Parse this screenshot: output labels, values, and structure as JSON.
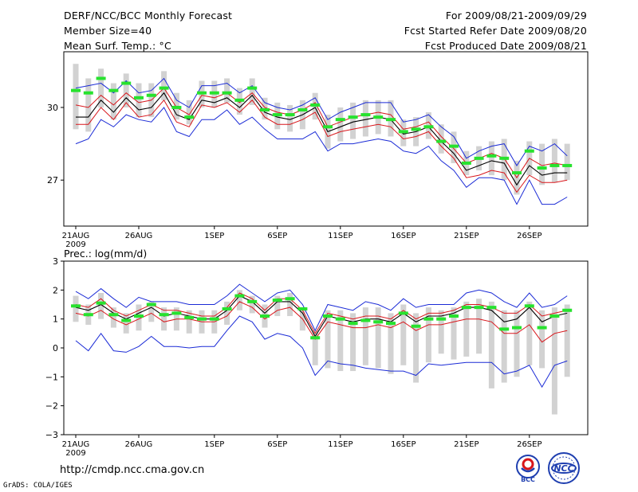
{
  "header": {
    "title": "DERF/NCC/BCC Monthly Forecast",
    "member_size": "Member Size=40",
    "variable": "Mean Surf. Temp.: °C",
    "forecast_period": "For 2009/08/21-2009/09/29",
    "start_date": "Fcst Started Refer Date 2009/08/20",
    "produced_date": "Fcst Produced Date 2009/08/21"
  },
  "footer": {
    "url": "http://cmdp.ncc.cma.gov.cn",
    "grads": "GrADS: COLA/IGES",
    "logo_bcc": "BCC",
    "logo_ncc": "NCC"
  },
  "colors": {
    "ensemble_min_max": "#1b2bd6",
    "ensemble_spread": "#d8161b",
    "ensemble_mean": "#000000",
    "box": "#d2d2d2",
    "observed": "#27e22e"
  },
  "chart_data": [
    {
      "type": "line",
      "title": "Mean Surf. Temp.: °C",
      "x": [
        1,
        2,
        3,
        4,
        5,
        6,
        7,
        8,
        9,
        10,
        11,
        12,
        13,
        14,
        15,
        16,
        17,
        18,
        19,
        20,
        21,
        22,
        23,
        24,
        25,
        26,
        27,
        28,
        29,
        30,
        31,
        32,
        33,
        34,
        35,
        36,
        37,
        38,
        39,
        40
      ],
      "x_ticks": [
        {
          "day": 1,
          "label": "21AUG"
        },
        {
          "day": 6,
          "label": "26AUG"
        },
        {
          "day": 12,
          "label": "1SEP"
        },
        {
          "day": 17,
          "label": "6SEP"
        },
        {
          "day": 22,
          "label": "11SEP"
        },
        {
          "day": 27,
          "label": "16SEP"
        },
        {
          "day": 32,
          "label": "21SEP"
        },
        {
          "day": 37,
          "label": "26SEP"
        }
      ],
      "year_label": "2009",
      "y_ticks": [
        27,
        30
      ],
      "ylim": [
        25.1,
        32.3
      ],
      "series": [
        {
          "name": "max",
          "values": [
            30.8,
            30.9,
            31.0,
            30.6,
            31.1,
            30.6,
            30.7,
            31.2,
            30.3,
            30.0,
            30.9,
            30.9,
            31.0,
            30.6,
            30.9,
            30.2,
            30.0,
            29.9,
            30.1,
            30.4,
            29.5,
            29.8,
            30.0,
            30.2,
            30.2,
            30.2,
            29.4,
            29.5,
            29.7,
            29.2,
            28.8,
            27.9,
            28.2,
            28.4,
            28.5,
            27.6,
            28.4,
            28.2,
            28.5,
            28.0
          ]
        },
        {
          "name": "spread_upper",
          "values": [
            30.1,
            30.0,
            30.5,
            30.1,
            30.6,
            30.2,
            30.3,
            30.8,
            30.0,
            29.7,
            30.5,
            30.4,
            30.6,
            30.2,
            30.6,
            30.0,
            29.8,
            29.7,
            29.9,
            30.2,
            29.2,
            29.4,
            29.6,
            29.7,
            29.8,
            29.7,
            29.1,
            29.2,
            29.4,
            28.8,
            28.3,
            27.7,
            27.9,
            28.1,
            27.9,
            27.1,
            27.9,
            27.6,
            27.7,
            27.6
          ]
        },
        {
          "name": "mean",
          "values": [
            29.6,
            29.6,
            30.3,
            29.8,
            30.4,
            29.9,
            30.0,
            30.6,
            29.7,
            29.5,
            30.3,
            30.2,
            30.4,
            30.0,
            30.5,
            29.8,
            29.6,
            29.5,
            29.7,
            30.0,
            29.0,
            29.2,
            29.4,
            29.5,
            29.6,
            29.5,
            28.9,
            29.0,
            29.2,
            28.6,
            28.1,
            27.4,
            27.6,
            27.8,
            27.7,
            26.8,
            27.6,
            27.2,
            27.3,
            27.3
          ]
        },
        {
          "name": "spread_lower",
          "values": [
            29.3,
            29.3,
            30.0,
            29.5,
            30.2,
            29.6,
            29.7,
            30.3,
            29.4,
            29.2,
            30.1,
            30.0,
            30.2,
            29.8,
            30.3,
            29.6,
            29.3,
            29.3,
            29.5,
            29.8,
            28.8,
            29.0,
            29.1,
            29.2,
            29.3,
            29.2,
            28.7,
            28.8,
            29.0,
            28.4,
            27.9,
            27.1,
            27.2,
            27.4,
            27.3,
            26.5,
            27.2,
            26.9,
            26.9,
            27.0
          ]
        },
        {
          "name": "min",
          "values": [
            28.5,
            28.7,
            29.5,
            29.2,
            29.7,
            29.5,
            29.4,
            30.0,
            29.0,
            28.8,
            29.5,
            29.5,
            29.9,
            29.3,
            29.6,
            29.1,
            28.7,
            28.7,
            28.7,
            29.0,
            28.2,
            28.5,
            28.5,
            28.6,
            28.7,
            28.6,
            28.2,
            28.1,
            28.4,
            27.8,
            27.4,
            26.7,
            27.1,
            27.1,
            27.0,
            26.0,
            27.0,
            26.0,
            26.0,
            26.3
          ]
        },
        {
          "name": "observed",
          "values": [
            30.7,
            30.6,
            31.2,
            30.7,
            31.0,
            30.4,
            30.5,
            30.8,
            30.0,
            29.6,
            30.6,
            30.6,
            30.6,
            30.3,
            30.8,
            29.9,
            29.7,
            29.7,
            29.9,
            30.1,
            29.2,
            29.5,
            29.6,
            29.7,
            29.6,
            29.5,
            29.0,
            29.1,
            29.2,
            28.6,
            28.4,
            27.7,
            27.9,
            28.0,
            27.9,
            27.3,
            28.2,
            27.5,
            27.6,
            27.6
          ]
        },
        {
          "name": "box_top",
          "values": [
            31.8,
            31.2,
            31.6,
            31.0,
            31.4,
            31.0,
            31.0,
            31.5,
            30.6,
            30.3,
            31.1,
            31.1,
            31.2,
            30.8,
            31.2,
            30.4,
            30.2,
            30.1,
            30.3,
            30.6,
            29.7,
            30.0,
            30.2,
            30.3,
            30.3,
            30.3,
            29.5,
            29.6,
            29.8,
            29.3,
            29.0,
            28.2,
            28.4,
            28.6,
            28.7,
            27.8,
            28.6,
            28.5,
            28.7,
            28.5
          ]
        },
        {
          "name": "box_bottom",
          "values": [
            29.1,
            29.0,
            30.0,
            29.5,
            30.0,
            29.6,
            29.6,
            30.3,
            29.5,
            29.3,
            30.0,
            30.0,
            30.2,
            29.7,
            30.1,
            29.5,
            29.1,
            29.0,
            29.1,
            29.5,
            28.3,
            28.6,
            28.7,
            28.8,
            28.9,
            28.8,
            28.4,
            28.4,
            28.7,
            28.1,
            27.7,
            27.2,
            27.4,
            27.2,
            27.0,
            26.4,
            27.2,
            26.8,
            26.9,
            27.0
          ]
        }
      ]
    },
    {
      "type": "line",
      "title": "Prec.: log(mm/d)",
      "x": [
        1,
        2,
        3,
        4,
        5,
        6,
        7,
        8,
        9,
        10,
        11,
        12,
        13,
        14,
        15,
        16,
        17,
        18,
        19,
        20,
        21,
        22,
        23,
        24,
        25,
        26,
        27,
        28,
        29,
        30,
        31,
        32,
        33,
        34,
        35,
        36,
        37,
        38,
        39,
        40
      ],
      "x_ticks": [
        {
          "day": 1,
          "label": "21AUG"
        },
        {
          "day": 6,
          "label": "26AUG"
        },
        {
          "day": 12,
          "label": "1SEP"
        },
        {
          "day": 17,
          "label": "6SEP"
        },
        {
          "day": 22,
          "label": "11SEP"
        },
        {
          "day": 27,
          "label": "16SEP"
        },
        {
          "day": 32,
          "label": "21SEP"
        },
        {
          "day": 37,
          "label": "26SEP"
        }
      ],
      "year_label": "2009",
      "y_ticks": [
        -3,
        -2,
        -1,
        0,
        1,
        2,
        3
      ],
      "ylim": [
        -3,
        3
      ],
      "series": [
        {
          "name": "max",
          "values": [
            1.95,
            1.7,
            2.05,
            1.7,
            1.4,
            1.75,
            1.6,
            1.6,
            1.6,
            1.5,
            1.5,
            1.5,
            1.8,
            2.2,
            1.9,
            1.6,
            1.9,
            2.0,
            1.5,
            0.6,
            1.5,
            1.4,
            1.3,
            1.6,
            1.5,
            1.3,
            1.7,
            1.4,
            1.5,
            1.5,
            1.5,
            1.9,
            2.0,
            1.9,
            1.6,
            1.4,
            1.9,
            1.4,
            1.5,
            1.8
          ]
        },
        {
          "name": "spread_upper",
          "values": [
            1.5,
            1.4,
            1.7,
            1.3,
            1.1,
            1.3,
            1.5,
            1.3,
            1.3,
            1.2,
            1.1,
            1.1,
            1.4,
            1.9,
            1.7,
            1.3,
            1.7,
            1.7,
            1.3,
            0.5,
            1.2,
            1.1,
            1.0,
            1.1,
            1.1,
            1.0,
            1.3,
            1.0,
            1.2,
            1.2,
            1.3,
            1.5,
            1.5,
            1.4,
            1.2,
            1.2,
            1.5,
            1.1,
            1.2,
            1.3
          ]
        },
        {
          "name": "mean",
          "values": [
            1.4,
            1.3,
            1.5,
            1.2,
            1.0,
            1.2,
            1.4,
            1.1,
            1.2,
            1.1,
            1.0,
            1.0,
            1.3,
            1.8,
            1.6,
            1.2,
            1.6,
            1.6,
            1.2,
            0.4,
            1.1,
            1.0,
            0.9,
            1.0,
            1.0,
            0.9,
            1.2,
            0.9,
            1.1,
            1.1,
            1.2,
            1.4,
            1.4,
            1.3,
            0.9,
            1.0,
            1.4,
            0.9,
            1.1,
            1.2
          ]
        },
        {
          "name": "spread_lower",
          "values": [
            1.2,
            1.1,
            1.3,
            1.0,
            0.8,
            1.0,
            1.2,
            0.9,
            1.0,
            1.0,
            0.9,
            0.9,
            1.1,
            1.6,
            1.4,
            1.0,
            1.3,
            1.4,
            1.0,
            0.3,
            0.9,
            0.8,
            0.7,
            0.7,
            0.8,
            0.7,
            0.9,
            0.6,
            0.8,
            0.8,
            0.9,
            1.0,
            1.0,
            0.9,
            0.5,
            0.5,
            0.8,
            0.2,
            0.5,
            0.6
          ]
        },
        {
          "name": "min",
          "values": [
            0.25,
            -0.1,
            0.5,
            -0.1,
            -0.15,
            0.05,
            0.4,
            0.05,
            0.05,
            0.0,
            0.05,
            0.05,
            0.6,
            1.1,
            0.9,
            0.3,
            0.5,
            0.4,
            0.0,
            -0.95,
            -0.45,
            -0.55,
            -0.6,
            -0.7,
            -0.75,
            -0.8,
            -0.8,
            -0.95,
            -0.55,
            -0.6,
            -0.55,
            -0.5,
            -0.5,
            -0.5,
            -0.9,
            -0.8,
            -0.6,
            -1.35,
            -0.6,
            -0.45
          ]
        },
        {
          "name": "observed",
          "values": [
            1.45,
            1.15,
            1.55,
            1.15,
            0.95,
            1.1,
            1.5,
            1.15,
            1.2,
            1.05,
            1.0,
            1.0,
            1.35,
            1.8,
            1.6,
            1.1,
            1.65,
            1.7,
            1.35,
            0.35,
            1.1,
            1.0,
            0.85,
            0.95,
            0.9,
            0.85,
            1.2,
            0.75,
            1.0,
            1.0,
            1.1,
            1.4,
            1.4,
            1.4,
            0.65,
            0.7,
            1.45,
            0.7,
            1.1,
            1.3
          ]
        },
        {
          "name": "box_top",
          "values": [
            1.8,
            1.5,
            1.9,
            1.4,
            1.2,
            1.5,
            1.6,
            1.4,
            1.4,
            1.3,
            1.3,
            1.3,
            1.6,
            2.0,
            1.8,
            1.5,
            1.8,
            1.9,
            1.4,
            0.6,
            1.3,
            1.3,
            1.2,
            1.4,
            1.4,
            1.2,
            1.5,
            1.2,
            1.4,
            1.3,
            1.4,
            1.6,
            1.7,
            1.6,
            1.3,
            1.3,
            1.6,
            1.3,
            1.4,
            1.5
          ]
        },
        {
          "name": "box_bottom",
          "values": [
            0.9,
            0.8,
            1.0,
            0.7,
            0.5,
            0.6,
            0.9,
            0.6,
            0.6,
            0.5,
            0.5,
            0.5,
            0.8,
            1.3,
            1.2,
            0.7,
            1.1,
            1.1,
            0.6,
            -0.6,
            -0.7,
            -0.8,
            -0.8,
            -0.6,
            -0.7,
            -0.9,
            -0.6,
            -1.2,
            -0.5,
            -0.2,
            -0.4,
            -0.3,
            -0.2,
            -1.4,
            -1.2,
            -1.0,
            -0.6,
            -0.7,
            -2.3,
            -1.0
          ]
        }
      ]
    }
  ]
}
